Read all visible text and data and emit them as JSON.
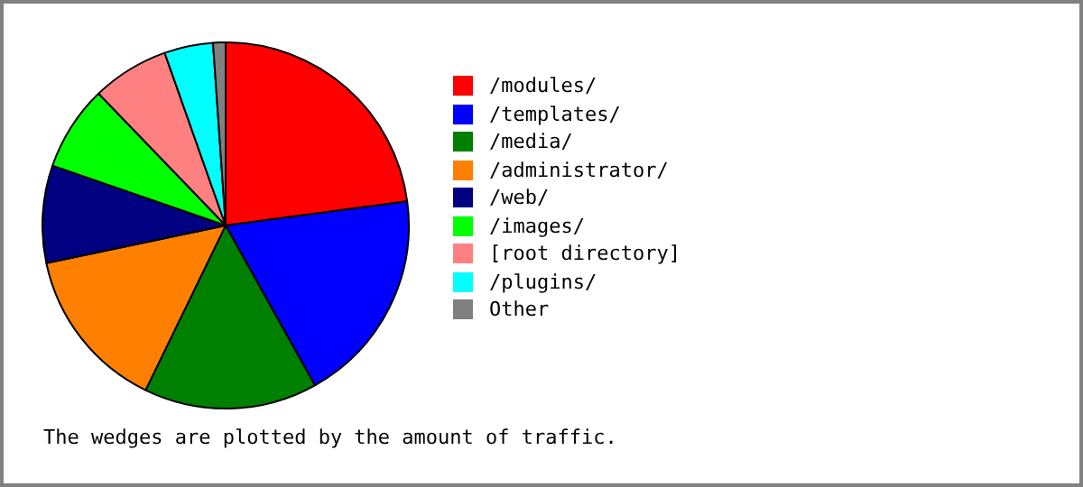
{
  "chart_data": {
    "type": "pie",
    "categories": [
      "/modules/",
      "/templates/",
      "/media/",
      "/administrator/",
      "/web/",
      "/images/",
      "[root directory]",
      "/plugins/",
      "Other"
    ],
    "values": [
      22.9,
      19,
      15.3,
      14.5,
      8.6,
      7.5,
      6.8,
      4.3,
      1.1
    ],
    "colors": [
      "#ff0000",
      "#0000ff",
      "#008000",
      "#ff8000",
      "#000080",
      "#00ff00",
      "#ff8080",
      "#00ffff",
      "#808080"
    ],
    "legend": "right",
    "annotations": [
      "The wedges are plotted by the amount of traffic."
    ]
  }
}
